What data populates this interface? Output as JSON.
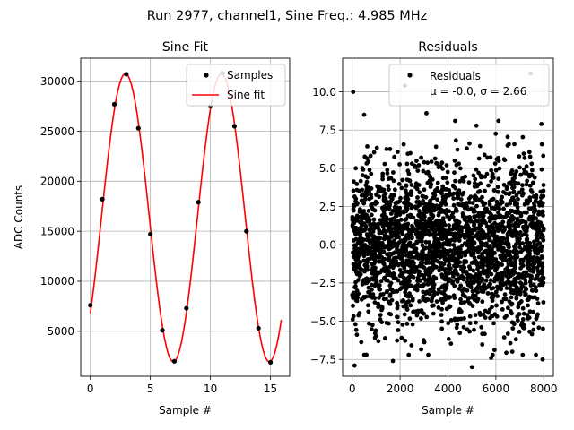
{
  "suptitle": "Run 2977, channel1, Sine Freq.: 4.985 MHz",
  "chart_data": [
    {
      "type": "line",
      "title": "Sine Fit",
      "xlabel": "Sample #",
      "ylabel": "ADC Counts",
      "xlim": [
        -0.8,
        16.6
      ],
      "ylim": [
        500,
        32300
      ],
      "xticks": [
        0,
        5,
        10,
        15
      ],
      "yticks": [
        5000,
        10000,
        15000,
        20000,
        25000,
        30000
      ],
      "grid": true,
      "legend_position": "top-right",
      "legend": [
        "Samples",
        "Sine fit"
      ],
      "series": [
        {
          "name": "Samples",
          "kind": "scatter",
          "color": "#000000",
          "x": [
            0,
            1,
            2,
            3,
            4,
            5,
            6,
            7,
            8,
            9,
            10,
            11,
            12,
            13,
            14,
            15
          ],
          "y": [
            7600,
            18200,
            27700,
            30700,
            25300,
            14700,
            5100,
            2000,
            7300,
            17900,
            27500,
            30800,
            25500,
            15000,
            5300,
            1900
          ]
        },
        {
          "name": "Sine fit",
          "kind": "line",
          "color": "#ff0000",
          "function": {
            "offset": 16350,
            "amplitude": 14400,
            "period": 7.99,
            "peak_x": 2.92
          },
          "x_range": [
            0,
            15.9
          ]
        }
      ]
    },
    {
      "type": "scatter",
      "title": "Residuals",
      "xlabel": "Sample #",
      "ylabel": "",
      "xlim": [
        -400,
        8400
      ],
      "ylim": [
        -8.6,
        12.2
      ],
      "xticks": [
        0,
        2000,
        4000,
        6000,
        8000
      ],
      "yticks": [
        -7.5,
        -5.0,
        -2.5,
        0.0,
        2.5,
        5.0,
        7.5,
        10.0
      ],
      "ytick_labels": [
        "−7.5",
        "−5.0",
        "−2.5",
        "0.0",
        "2.5",
        "5.0",
        "7.5",
        "10.0"
      ],
      "grid": true,
      "legend_position": "top-right",
      "legend": [
        "Residuals",
        "μ = -0.0, σ = 2.66"
      ],
      "series": [
        {
          "name": "Residuals",
          "kind": "scatter",
          "color": "#000000",
          "count": 8000,
          "mean": -0.0,
          "std": 2.66,
          "x_range": [
            0,
            8000
          ],
          "outliers": [
            {
              "x": 40,
              "y": 10.0
            },
            {
              "x": 2200,
              "y": 10.4
            },
            {
              "x": 7450,
              "y": 11.2
            },
            {
              "x": 100,
              "y": -7.9
            },
            {
              "x": 5000,
              "y": -8.0
            },
            {
              "x": 7950,
              "y": -7.5
            },
            {
              "x": 1700,
              "y": -7.6
            },
            {
              "x": 5800,
              "y": -7.4
            },
            {
              "x": 3100,
              "y": 8.6
            },
            {
              "x": 7900,
              "y": 7.9
            },
            {
              "x": 500,
              "y": 8.5
            },
            {
              "x": 4300,
              "y": 8.1
            }
          ]
        }
      ]
    }
  ]
}
